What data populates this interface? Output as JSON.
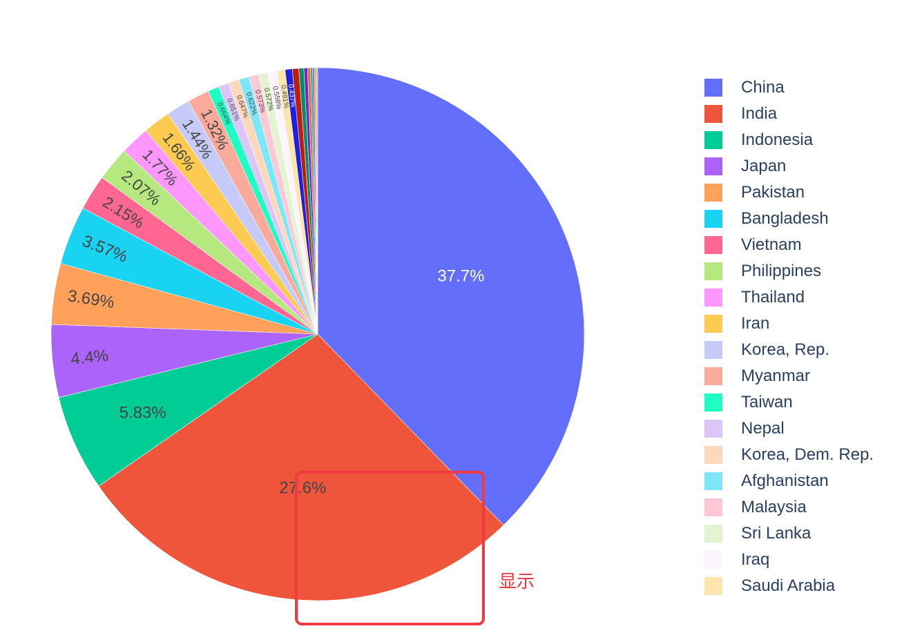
{
  "chart_data": {
    "type": "pie",
    "title": "",
    "direction": "clockwise",
    "start_angle_deg": 90,
    "legend_position": "right",
    "slices": [
      {
        "label": "China",
        "percent": 37.7,
        "text": "37.7%",
        "color": "#636efa",
        "text_color": "#ffffff"
      },
      {
        "label": "India",
        "percent": 27.6,
        "text": "27.6%",
        "color": "#ef553b",
        "text_color": "#444444"
      },
      {
        "label": "Indonesia",
        "percent": 5.83,
        "text": "5.83%",
        "color": "#00cc96",
        "text_color": "#444444"
      },
      {
        "label": "Japan",
        "percent": 4.4,
        "text": "4.4%",
        "color": "#ab63fa",
        "text_color": "#444444"
      },
      {
        "label": "Pakistan",
        "percent": 3.69,
        "text": "3.69%",
        "color": "#ffa15a",
        "text_color": "#444444"
      },
      {
        "label": "Bangladesh",
        "percent": 3.57,
        "text": "3.57%",
        "color": "#19d3f3",
        "text_color": "#444444"
      },
      {
        "label": "Vietnam",
        "percent": 2.15,
        "text": "2.15%",
        "color": "#ff6692",
        "text_color": "#444444"
      },
      {
        "label": "Philippines",
        "percent": 2.07,
        "text": "2.07%",
        "color": "#b6e880",
        "text_color": "#444444"
      },
      {
        "label": "Thailand",
        "percent": 1.77,
        "text": "1.77%",
        "color": "#ff97ff",
        "text_color": "#444444"
      },
      {
        "label": "Iran",
        "percent": 1.66,
        "text": "1.66%",
        "color": "#fecb52",
        "text_color": "#444444"
      },
      {
        "label": "Korea, Rep.",
        "percent": 1.44,
        "text": "1.44%",
        "color": "#c6caf8",
        "text_color": "#444444"
      },
      {
        "label": "Myanmar",
        "percent": 1.32,
        "text": "1.32%",
        "color": "#f9aa9a",
        "text_color": "#444444"
      },
      {
        "label": "Taiwan",
        "percent": 0.664,
        "text": "0.664%",
        "color": "#1efdc4",
        "text_color": "#444444"
      },
      {
        "label": "Nepal",
        "percent": 0.651,
        "text": "0.651%",
        "color": "#dcc6f8",
        "text_color": "#444444"
      },
      {
        "label": "Korea, Dem. Rep.",
        "percent": 0.647,
        "text": "0.647%",
        "color": "#fed8bd",
        "text_color": "#444444"
      },
      {
        "label": "Afghanistan",
        "percent": 0.622,
        "text": "0.622%",
        "color": "#7ee6f8",
        "text_color": "#444444"
      },
      {
        "label": "Malaysia",
        "percent": 0.573,
        "text": "0.573%",
        "color": "#ffc8d6",
        "text_color": "#444444"
      },
      {
        "label": "Sri Lanka",
        "percent": 0.572,
        "text": "0.572%",
        "color": "#e2f5d0",
        "text_color": "#444444"
      },
      {
        "label": "Iraq",
        "percent": 0.558,
        "text": "0.558%",
        "color": "#fdf5fd",
        "text_color": "#444444"
      },
      {
        "label": "Saudi Arabia",
        "percent": 0.491,
        "text": "0.491%",
        "color": "#fee5ae",
        "text_color": "#444444"
      },
      {
        "label": "",
        "percent": 0.437,
        "text": "0.437%",
        "color": "#1f1fe0",
        "text_color": "#ffffff"
      },
      {
        "label": "",
        "percent": 0.39,
        "text": "",
        "color": "#b81f12",
        "text_color": "#ffffff"
      },
      {
        "label": "",
        "percent": 0.3,
        "text": "",
        "color": "#0b8a63",
        "text_color": "#ffffff"
      },
      {
        "label": "",
        "percent": 0.22,
        "text": "",
        "color": "#6b2ad0",
        "text_color": "#ffffff"
      },
      {
        "label": "",
        "percent": 0.18,
        "text": "",
        "color": "#d9742e",
        "text_color": "#ffffff"
      },
      {
        "label": "",
        "percent": 0.12,
        "text": "",
        "color": "#0fa6c7",
        "text_color": "#ffffff"
      },
      {
        "label": "",
        "percent": 0.1,
        "text": "",
        "color": "#c93a6b",
        "text_color": "#ffffff"
      },
      {
        "label": "",
        "percent": 0.08,
        "text": "",
        "color": "#8dbf4c",
        "text_color": "#ffffff"
      },
      {
        "label": "",
        "percent": 0.07,
        "text": "",
        "color": "#d069d0",
        "text_color": "#ffffff"
      },
      {
        "label": "",
        "percent": 0.06,
        "text": "",
        "color": "#d9a32b",
        "text_color": "#ffffff"
      }
    ]
  },
  "legend": {
    "items": [
      {
        "label": "China",
        "color": "#636efa"
      },
      {
        "label": "India",
        "color": "#ef553b"
      },
      {
        "label": "Indonesia",
        "color": "#00cc96"
      },
      {
        "label": "Japan",
        "color": "#ab63fa"
      },
      {
        "label": "Pakistan",
        "color": "#ffa15a"
      },
      {
        "label": "Bangladesh",
        "color": "#19d3f3"
      },
      {
        "label": "Vietnam",
        "color": "#ff6692"
      },
      {
        "label": "Philippines",
        "color": "#b6e880"
      },
      {
        "label": "Thailand",
        "color": "#ff97ff"
      },
      {
        "label": "Iran",
        "color": "#fecb52"
      },
      {
        "label": "Korea, Rep.",
        "color": "#c6caf8"
      },
      {
        "label": "Myanmar",
        "color": "#f9aa9a"
      },
      {
        "label": "Taiwan",
        "color": "#1efdc4"
      },
      {
        "label": "Nepal",
        "color": "#dcc6f8"
      },
      {
        "label": "Korea, Dem. Rep.",
        "color": "#fed8bd"
      },
      {
        "label": "Afghanistan",
        "color": "#7ee6f8"
      },
      {
        "label": "Malaysia",
        "color": "#ffc8d6"
      },
      {
        "label": "Sri Lanka",
        "color": "#e2f5d0"
      },
      {
        "label": "Iraq",
        "color": "#fdf5fd"
      },
      {
        "label": "Saudi Arabia",
        "color": "#fee5ae"
      }
    ]
  },
  "annotation": {
    "text": "显示",
    "color": "#e8383d"
  }
}
